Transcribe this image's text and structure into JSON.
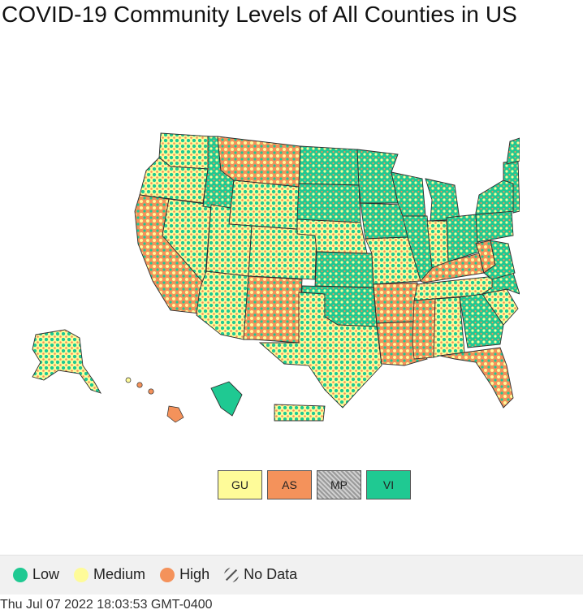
{
  "title": "COVID-19 Community Levels of All Counties in US",
  "colors": {
    "low": "#1fc992",
    "medium": "#fefb99",
    "high": "#f4925b",
    "no_data": "#9a9a9a",
    "border": "#2d2d2d"
  },
  "map": {
    "regions": [
      {
        "name": "Washington",
        "level": "medium"
      },
      {
        "name": "Oregon",
        "level": "medium"
      },
      {
        "name": "California",
        "level": "high"
      },
      {
        "name": "Nevada",
        "level": "medium"
      },
      {
        "name": "Idaho",
        "level": "low"
      },
      {
        "name": "Montana",
        "level": "high"
      },
      {
        "name": "Wyoming",
        "level": "medium"
      },
      {
        "name": "Utah",
        "level": "medium"
      },
      {
        "name": "Arizona",
        "level": "medium"
      },
      {
        "name": "Colorado",
        "level": "medium"
      },
      {
        "name": "New Mexico",
        "level": "high"
      },
      {
        "name": "North Dakota",
        "level": "low"
      },
      {
        "name": "South Dakota",
        "level": "low"
      },
      {
        "name": "Nebraska",
        "level": "medium"
      },
      {
        "name": "Kansas",
        "level": "low"
      },
      {
        "name": "Oklahoma",
        "level": "low"
      },
      {
        "name": "Texas",
        "level": "medium"
      },
      {
        "name": "Minnesota",
        "level": "low"
      },
      {
        "name": "Iowa",
        "level": "low"
      },
      {
        "name": "Missouri",
        "level": "medium"
      },
      {
        "name": "Arkansas",
        "level": "high"
      },
      {
        "name": "Louisiana",
        "level": "high"
      },
      {
        "name": "Wisconsin",
        "level": "low"
      },
      {
        "name": "Illinois",
        "level": "low"
      },
      {
        "name": "Michigan",
        "level": "low"
      },
      {
        "name": "Indiana",
        "level": "medium"
      },
      {
        "name": "Ohio",
        "level": "low"
      },
      {
        "name": "Kentucky",
        "level": "high"
      },
      {
        "name": "Tennessee",
        "level": "medium"
      },
      {
        "name": "Mississippi",
        "level": "high"
      },
      {
        "name": "Alabama",
        "level": "medium"
      },
      {
        "name": "Georgia",
        "level": "low"
      },
      {
        "name": "Florida",
        "level": "high"
      },
      {
        "name": "South Carolina",
        "level": "medium"
      },
      {
        "name": "North Carolina",
        "level": "low"
      },
      {
        "name": "Virginia",
        "level": "low"
      },
      {
        "name": "West Virginia",
        "level": "high"
      },
      {
        "name": "Pennsylvania",
        "level": "low"
      },
      {
        "name": "New York",
        "level": "low"
      },
      {
        "name": "New England",
        "level": "low"
      },
      {
        "name": "Maine",
        "level": "low"
      },
      {
        "name": "Alaska",
        "level": "medium"
      },
      {
        "name": "Hawaii",
        "level": "high"
      },
      {
        "name": "Puerto Rico",
        "level": "medium"
      },
      {
        "name": "U.S. Virgin Islands",
        "level": "low"
      }
    ]
  },
  "territories": [
    {
      "label": "GU",
      "level": "medium"
    },
    {
      "label": "AS",
      "level": "high"
    },
    {
      "label": "MP",
      "level": "no_data"
    },
    {
      "label": "VI",
      "level": "low"
    }
  ],
  "legend": {
    "low": "Low",
    "medium": "Medium",
    "high": "High",
    "no_data": "No Data"
  },
  "timestamp": "Thu Jul 07 2022 18:03:53 GMT-0400"
}
